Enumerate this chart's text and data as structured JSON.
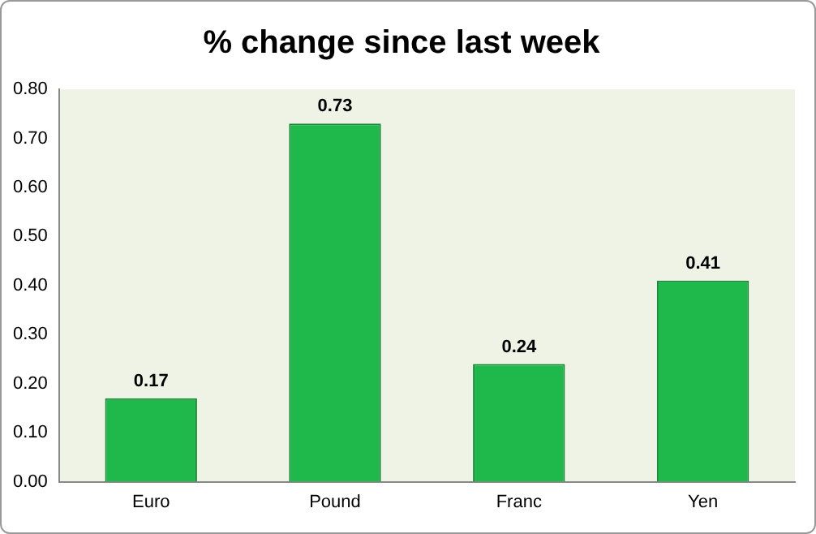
{
  "chart_data": {
    "type": "bar",
    "title": "% change since last week",
    "categories": [
      "Euro",
      "Pound",
      "Franc",
      "Yen"
    ],
    "values": [
      0.17,
      0.73,
      0.24,
      0.41
    ],
    "color": "#1fb84a",
    "ylim": [
      0,
      0.8
    ],
    "yticks": [
      {
        "value": 0,
        "label": "0.00"
      },
      {
        "value": 0.1,
        "label": "0.10"
      },
      {
        "value": 0.2,
        "label": "0.20"
      },
      {
        "value": 0.3,
        "label": "0.30"
      },
      {
        "value": 0.4,
        "label": "0.40"
      },
      {
        "value": 0.5,
        "label": "0.50"
      },
      {
        "value": 0.6,
        "label": "0.60"
      },
      {
        "value": 0.7,
        "label": "0.70"
      },
      {
        "value": 0.8,
        "label": "0.80"
      }
    ],
    "data_labels": true,
    "grid": false,
    "legend": false
  }
}
